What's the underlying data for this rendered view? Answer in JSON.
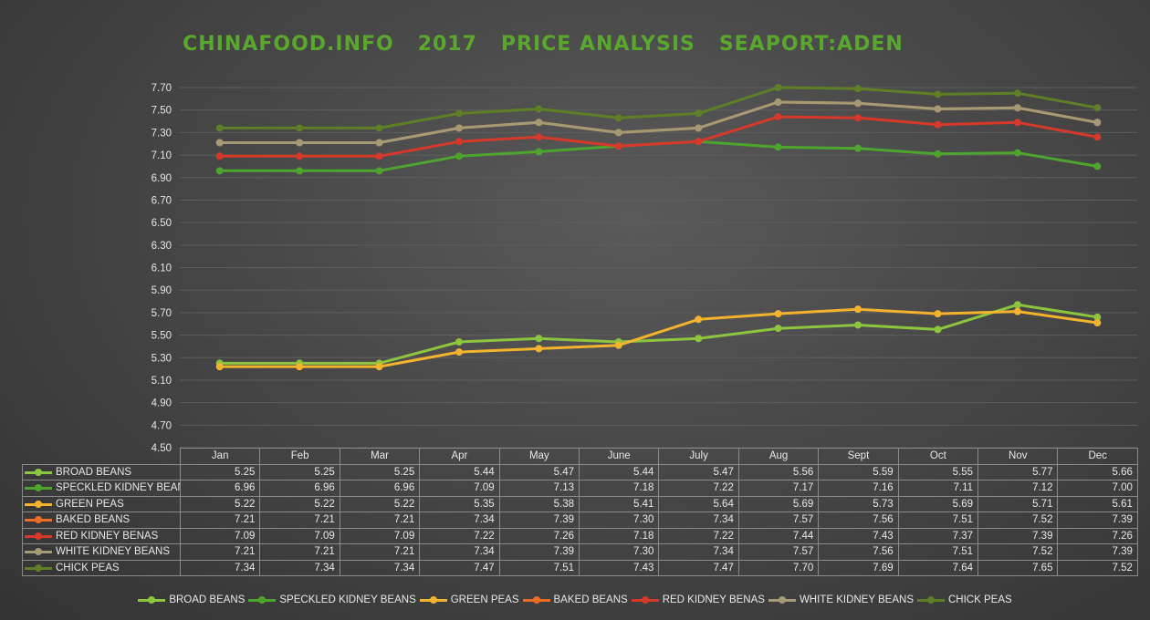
{
  "title": "CHINAFOOD.INFO   2017   PRICE ANALYSIS   SEAPORT:ADEN",
  "chart_data": {
    "type": "line",
    "title": "CHINAFOOD.INFO   2017   PRICE ANALYSIS   SEAPORT:ADEN",
    "categories": [
      "Jan",
      "Feb",
      "Mar",
      "Apr",
      "May",
      "June",
      "July",
      "Aug",
      "Sept",
      "Oct",
      "Nov",
      "Dec"
    ],
    "ylim": [
      4.5,
      7.7
    ],
    "yticks": [
      "4.50",
      "4.70",
      "4.90",
      "5.10",
      "5.30",
      "5.50",
      "5.70",
      "5.90",
      "6.10",
      "6.30",
      "6.50",
      "6.70",
      "6.90",
      "7.10",
      "7.30",
      "7.50",
      "7.70"
    ],
    "grid": true,
    "legend_position": "bottom",
    "data_table": true,
    "series": [
      {
        "name": "BROAD BEANS",
        "color": "#8cc63f",
        "values": [
          5.25,
          5.25,
          5.25,
          5.44,
          5.47,
          5.44,
          5.47,
          5.56,
          5.59,
          5.55,
          5.77,
          5.66
        ],
        "labels": [
          "5.25",
          "5.25",
          "5.25",
          "5.44",
          "5.47",
          "5.44",
          "5.47",
          "5.56",
          "5.59",
          "5.55",
          "5.77",
          "5.66"
        ]
      },
      {
        "name": "SPECKLED KIDNEY BEANS",
        "color": "#4ea52e",
        "values": [
          6.96,
          6.96,
          6.96,
          7.09,
          7.13,
          7.18,
          7.22,
          7.17,
          7.16,
          7.11,
          7.12,
          7.0
        ],
        "labels": [
          "6.96",
          "6.96",
          "6.96",
          "7.09",
          "7.13",
          "7.18",
          "7.22",
          "7.17",
          "7.16",
          "7.11",
          "7.12",
          "7.00"
        ]
      },
      {
        "name": "GREEN PEAS",
        "color": "#f3b32c",
        "values": [
          5.22,
          5.22,
          5.22,
          5.35,
          5.38,
          5.41,
          5.64,
          5.69,
          5.73,
          5.69,
          5.71,
          5.61
        ],
        "labels": [
          "5.22",
          "5.22",
          "5.22",
          "5.35",
          "5.38",
          "5.41",
          "5.64",
          "5.69",
          "5.73",
          "5.69",
          "5.71",
          "5.61"
        ]
      },
      {
        "name": "BAKED BEANS",
        "color": "#ee6c24",
        "values": [
          7.21,
          7.21,
          7.21,
          7.34,
          7.39,
          7.3,
          7.34,
          7.57,
          7.56,
          7.51,
          7.52,
          7.39
        ],
        "labels": [
          "7.21",
          "7.21",
          "7.21",
          "7.34",
          "7.39",
          "7.30",
          "7.34",
          "7.57",
          "7.56",
          "7.51",
          "7.52",
          "7.39"
        ]
      },
      {
        "name": "RED KIDNEY BENAS",
        "color": "#d6382a",
        "values": [
          7.09,
          7.09,
          7.09,
          7.22,
          7.26,
          7.18,
          7.22,
          7.44,
          7.43,
          7.37,
          7.39,
          7.26
        ],
        "labels": [
          "7.09",
          "7.09",
          "7.09",
          "7.22",
          "7.26",
          "7.18",
          "7.22",
          "7.44",
          "7.43",
          "7.37",
          "7.39",
          "7.26"
        ]
      },
      {
        "name": "WHITE KIDNEY BEANS",
        "color": "#a49a76",
        "values": [
          7.21,
          7.21,
          7.21,
          7.34,
          7.39,
          7.3,
          7.34,
          7.57,
          7.56,
          7.51,
          7.52,
          7.39
        ],
        "labels": [
          "7.21",
          "7.21",
          "7.21",
          "7.34",
          "7.39",
          "7.30",
          "7.34",
          "7.57",
          "7.56",
          "7.51",
          "7.52",
          "7.39"
        ]
      },
      {
        "name": "CHICK PEAS",
        "color": "#5f7f26",
        "values": [
          7.34,
          7.34,
          7.34,
          7.47,
          7.51,
          7.43,
          7.47,
          7.7,
          7.69,
          7.64,
          7.65,
          7.52
        ],
        "labels": [
          "7.34",
          "7.34",
          "7.34",
          "7.47",
          "7.51",
          "7.43",
          "7.47",
          "7.70",
          "7.69",
          "7.64",
          "7.65",
          "7.52"
        ]
      }
    ]
  }
}
